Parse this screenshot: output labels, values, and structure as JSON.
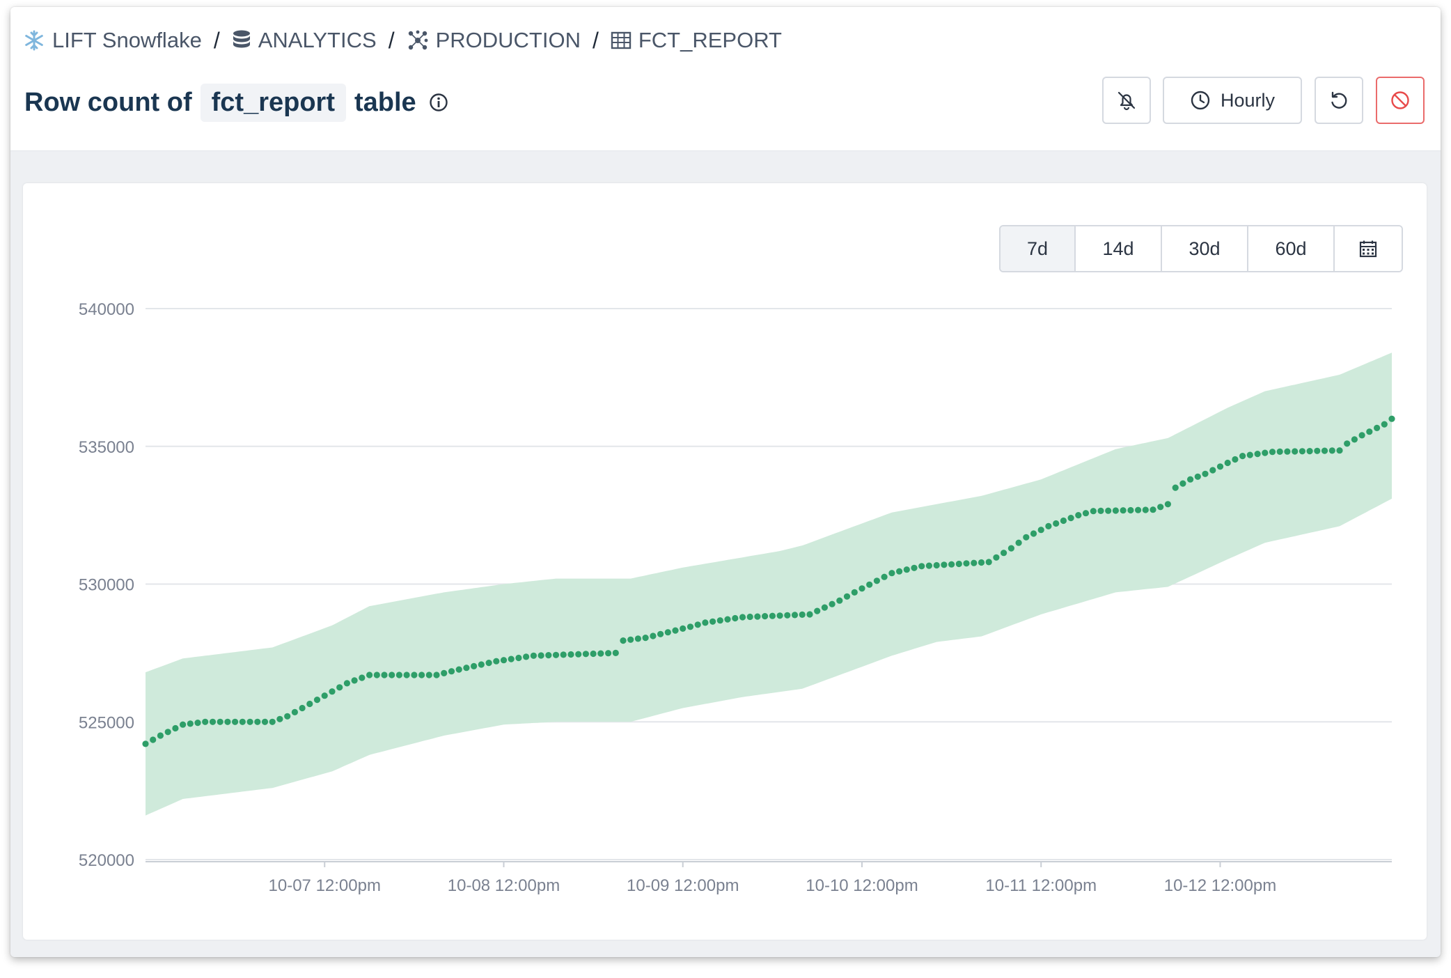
{
  "breadcrumb": {
    "items": [
      {
        "label": "LIFT Snowflake",
        "icon": "snowflake-icon"
      },
      {
        "label": "ANALYTICS",
        "icon": "database-icon"
      },
      {
        "label": "PRODUCTION",
        "icon": "schema-icon"
      },
      {
        "label": "FCT_REPORT",
        "icon": "table-icon"
      }
    ],
    "separator": "/"
  },
  "title": {
    "prefix": "Row count of",
    "table_name": "fct_report",
    "suffix": "table"
  },
  "header_buttons": {
    "mute_icon": "bell-off-icon",
    "schedule_label": "Hourly",
    "schedule_icon": "clock-icon",
    "refresh_icon": "refresh-icon",
    "disable_icon": "ban-icon"
  },
  "range_selector": {
    "options": [
      "7d",
      "14d",
      "30d",
      "60d"
    ],
    "selected": "7d",
    "calendar_icon": "calendar-icon"
  },
  "colors": {
    "band": "#cfeadb",
    "point": "#2e9e68",
    "disable_accent": "#e84a4a"
  },
  "chart_data": {
    "type": "line",
    "ylim": [
      520000,
      540000
    ],
    "y_ticks": [
      "540000",
      "535000",
      "530000",
      "525000",
      "520000"
    ],
    "x_ticks": [
      "10-07 12:00pm",
      "10-08 12:00pm",
      "10-09 12:00pm",
      "10-10 12:00pm",
      "10-11 12:00pm",
      "10-12 12:00pm"
    ],
    "x_range_hours": [
      0,
      167
    ],
    "x_tick_hours": [
      24,
      48,
      72,
      96,
      120,
      144
    ],
    "series": [
      {
        "kind": "points",
        "anchors": [
          [
            0,
            524200
          ],
          [
            2,
            524500
          ],
          [
            5,
            524900
          ],
          [
            8,
            525000
          ],
          [
            17,
            525000
          ],
          [
            19,
            525200
          ],
          [
            25,
            526100
          ],
          [
            27,
            526400
          ],
          [
            30,
            526700
          ],
          [
            39,
            526700
          ],
          [
            42,
            526900
          ],
          [
            47,
            527200
          ],
          [
            52,
            527400
          ],
          [
            63,
            527500
          ],
          [
            64,
            527950
          ],
          [
            67,
            528050
          ],
          [
            73,
            528450
          ],
          [
            75,
            528600
          ],
          [
            80,
            528800
          ],
          [
            89,
            528900
          ],
          [
            93,
            529400
          ],
          [
            95,
            529700
          ],
          [
            100,
            530400
          ],
          [
            104,
            530650
          ],
          [
            113,
            530800
          ],
          [
            116,
            531300
          ],
          [
            118,
            531700
          ],
          [
            121,
            532100
          ],
          [
            125,
            532500
          ],
          [
            127,
            532650
          ],
          [
            135,
            532700
          ],
          [
            137,
            532900
          ],
          [
            138,
            533500
          ],
          [
            140,
            533800
          ],
          [
            142,
            534000
          ],
          [
            145,
            534400
          ],
          [
            147,
            534650
          ],
          [
            151,
            534800
          ],
          [
            160,
            534850
          ],
          [
            161,
            535100
          ],
          [
            163,
            535400
          ],
          [
            166,
            535800
          ],
          [
            167,
            536000
          ]
        ]
      },
      {
        "kind": "band_upper",
        "anchors": [
          [
            0,
            526800
          ],
          [
            5,
            527300
          ],
          [
            17,
            527700
          ],
          [
            25,
            528500
          ],
          [
            30,
            529200
          ],
          [
            40,
            529700
          ],
          [
            48,
            530000
          ],
          [
            55,
            530200
          ],
          [
            65,
            530200
          ],
          [
            72,
            530600
          ],
          [
            85,
            531200
          ],
          [
            88,
            531400
          ],
          [
            100,
            532600
          ],
          [
            106,
            532900
          ],
          [
            112,
            533200
          ],
          [
            120,
            533800
          ],
          [
            130,
            534900
          ],
          [
            137,
            535300
          ],
          [
            145,
            536400
          ],
          [
            150,
            537000
          ],
          [
            160,
            537600
          ],
          [
            167,
            538400
          ]
        ]
      },
      {
        "kind": "band_lower",
        "anchors": [
          [
            0,
            521600
          ],
          [
            5,
            522200
          ],
          [
            17,
            522600
          ],
          [
            25,
            523200
          ],
          [
            30,
            523800
          ],
          [
            40,
            524500
          ],
          [
            48,
            524900
          ],
          [
            55,
            525000
          ],
          [
            65,
            525000
          ],
          [
            72,
            525500
          ],
          [
            80,
            525900
          ],
          [
            88,
            526200
          ],
          [
            100,
            527400
          ],
          [
            106,
            527900
          ],
          [
            112,
            528100
          ],
          [
            120,
            528900
          ],
          [
            130,
            529700
          ],
          [
            137,
            529900
          ],
          [
            145,
            530900
          ],
          [
            150,
            531500
          ],
          [
            160,
            532100
          ],
          [
            167,
            533100
          ]
        ]
      }
    ]
  }
}
